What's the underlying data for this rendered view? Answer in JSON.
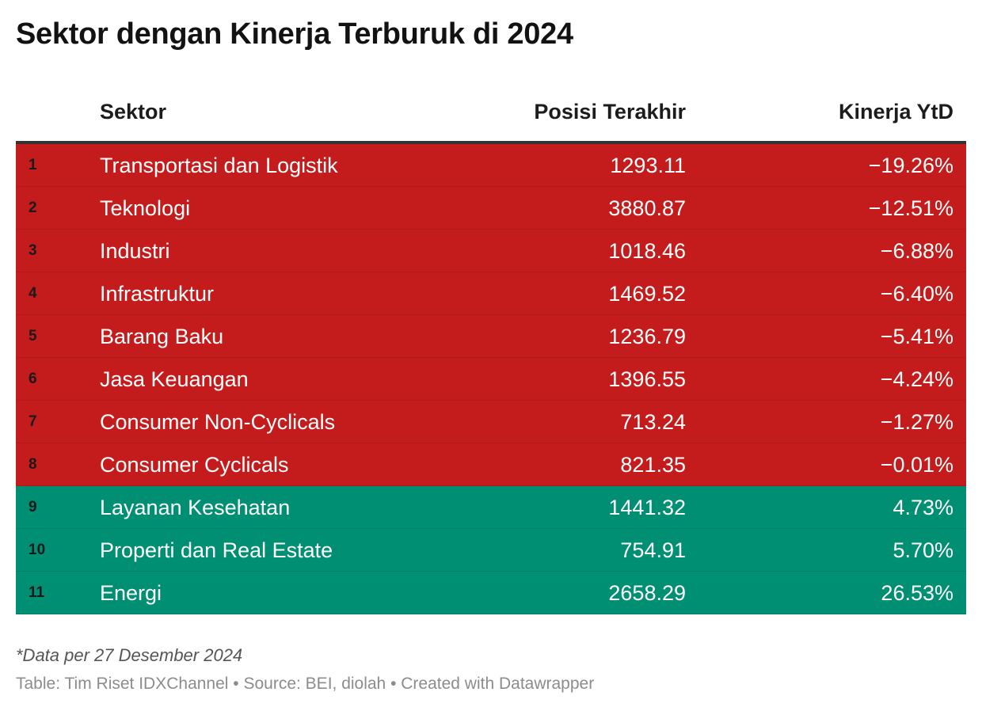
{
  "title": "Sektor dengan Kinerja Terburuk di 2024",
  "colors": {
    "negative": "#c41c1c",
    "positive": "#008f72"
  },
  "chart_data": {
    "type": "table",
    "title": "Sektor dengan Kinerja Terburuk di 2024",
    "columns": [
      "Sektor",
      "Posisi Terakhir",
      "Kinerja YtD"
    ],
    "rows": [
      {
        "rank": "1",
        "sektor": "Transportasi dan Logistik",
        "posisi": "1293.11",
        "kinerja": "−19.26%",
        "value": -19.26
      },
      {
        "rank": "2",
        "sektor": "Teknologi",
        "posisi": "3880.87",
        "kinerja": "−12.51%",
        "value": -12.51
      },
      {
        "rank": "3",
        "sektor": "Industri",
        "posisi": "1018.46",
        "kinerja": "−6.88%",
        "value": -6.88
      },
      {
        "rank": "4",
        "sektor": "Infrastruktur",
        "posisi": "1469.52",
        "kinerja": "−6.40%",
        "value": -6.4
      },
      {
        "rank": "5",
        "sektor": "Barang Baku",
        "posisi": "1236.79",
        "kinerja": "−5.41%",
        "value": -5.41
      },
      {
        "rank": "6",
        "sektor": "Jasa Keuangan",
        "posisi": "1396.55",
        "kinerja": "−4.24%",
        "value": -4.24
      },
      {
        "rank": "7",
        "sektor": "Consumer Non-Cyclicals",
        "posisi": "713.24",
        "kinerja": "−1.27%",
        "value": -1.27
      },
      {
        "rank": "8",
        "sektor": "Consumer Cyclicals",
        "posisi": "821.35",
        "kinerja": "−0.01%",
        "value": -0.01
      },
      {
        "rank": "9",
        "sektor": "Layanan Kesehatan",
        "posisi": "1441.32",
        "kinerja": "4.73%",
        "value": 4.73
      },
      {
        "rank": "10",
        "sektor": "Properti dan Real Estate",
        "posisi": "754.91",
        "kinerja": "5.70%",
        "value": 5.7
      },
      {
        "rank": "11",
        "sektor": "Energi",
        "posisi": "2658.29",
        "kinerja": "26.53%",
        "value": 26.53
      }
    ]
  },
  "note": "*Data per 27 Desember 2024",
  "footer": "Table: Tim Riset IDXChannel • Source: BEI, diolah • Created with Datawrapper"
}
